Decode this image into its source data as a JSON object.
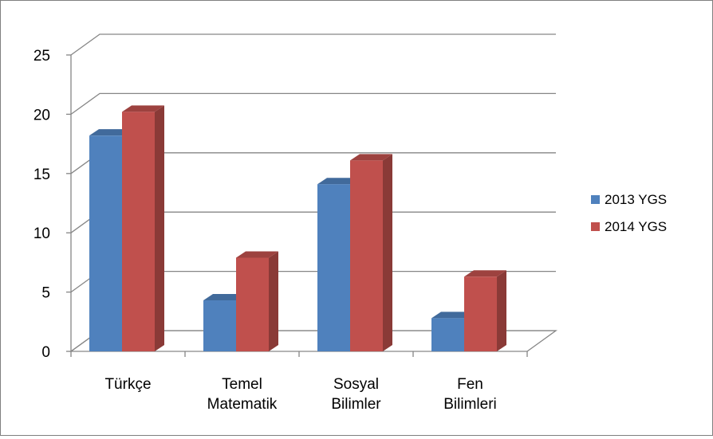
{
  "chart_data": {
    "type": "bar",
    "title": "",
    "xlabel": "",
    "ylabel": "",
    "ylim": [
      0,
      25
    ],
    "yticks": [
      0,
      5,
      10,
      15,
      20,
      25
    ],
    "grid": true,
    "legend": "right",
    "categories": [
      [
        "Türkçe"
      ],
      [
        "Temel",
        "Matematik"
      ],
      [
        "Sosyal",
        "Bilimler"
      ],
      [
        "Fen",
        "Bilimleri"
      ]
    ],
    "series": [
      {
        "name": "2013 YGS",
        "color": "#4f81bd",
        "values": [
          18.2,
          4.3,
          14.1,
          2.8
        ]
      },
      {
        "name": "2014 YGS",
        "color": "#c0504d",
        "values": [
          20.2,
          7.9,
          16.1,
          6.3
        ]
      }
    ]
  }
}
